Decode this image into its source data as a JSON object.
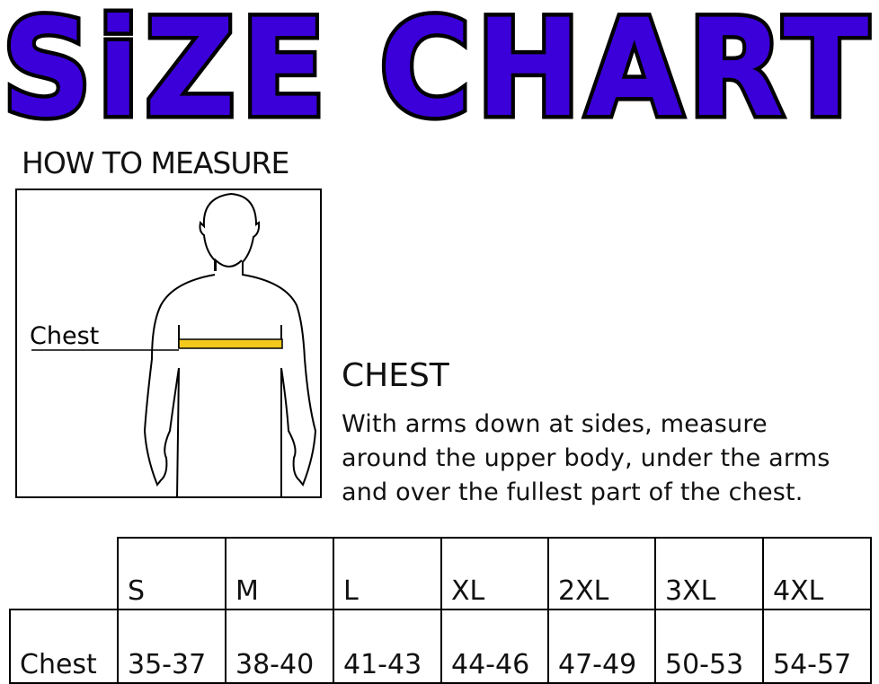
{
  "title": "SiZE CHART",
  "title_color": "#3b00d9",
  "how_to_measure": "HOW TO MEASURE",
  "figure": {
    "label": "Chest",
    "tape_color": "#f2c91c"
  },
  "chest": {
    "heading": "CHEST",
    "lines": [
      "With arms down at sides, measure",
      "around the upper body, under the arms",
      "and over the fullest part of the chest."
    ]
  },
  "table": {
    "sizes": [
      "S",
      "M",
      "L",
      "XL",
      "2XL",
      "3XL",
      "4XL"
    ],
    "rows": [
      {
        "label": "Chest",
        "values": [
          "35-37",
          "38-40",
          "41-43",
          "44-46",
          "47-49",
          "50-53",
          "54-57"
        ]
      }
    ]
  }
}
